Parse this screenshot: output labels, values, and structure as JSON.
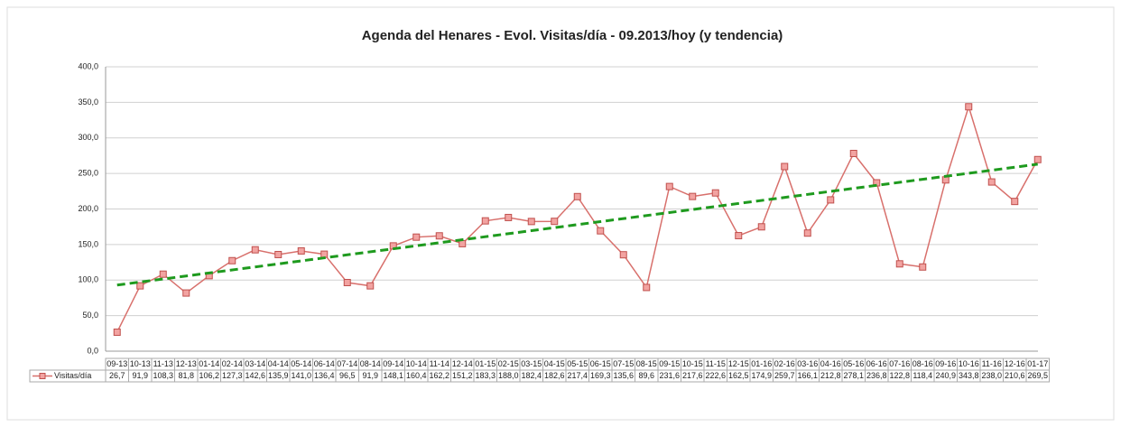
{
  "chart_data": {
    "type": "line",
    "title": "Agenda del Henares - Evol. Visitas/día - 09.2013/hoy (y tendencia)",
    "categories": [
      "09-13",
      "10-13",
      "11-13",
      "12-13",
      "01-14",
      "02-14",
      "03-14",
      "04-14",
      "05-14",
      "06-14",
      "07-14",
      "08-14",
      "09-14",
      "10-14",
      "11-14",
      "12-14",
      "01-15",
      "02-15",
      "03-15",
      "04-15",
      "05-15",
      "06-15",
      "07-15",
      "08-15",
      "09-15",
      "10-15",
      "11-15",
      "12-15",
      "01-16",
      "02-16",
      "03-16",
      "04-16",
      "05-16",
      "06-16",
      "07-16",
      "08-16",
      "09-16",
      "10-16",
      "11-16",
      "12-16",
      "01-17"
    ],
    "series": [
      {
        "name": "Visitas/día",
        "color": "#c0504d",
        "values": [
          26.7,
          91.9,
          108.3,
          81.8,
          106.2,
          127.3,
          142.6,
          135.9,
          141.0,
          136.4,
          96.5,
          91.9,
          148.1,
          160.4,
          162.2,
          151.2,
          183.3,
          188.0,
          182.4,
          182.6,
          217.4,
          169.3,
          135.6,
          89.6,
          231.6,
          217.6,
          222.6,
          162.5,
          174.9,
          259.7,
          166.1,
          212.8,
          278.1,
          236.8,
          122.8,
          118.4,
          240.9,
          343.8,
          238.0,
          210.6,
          269.5
        ],
        "value_labels": [
          "26,7",
          "91,9",
          "108,3",
          "81,8",
          "106,2",
          "127,3",
          "142,6",
          "135,9",
          "141,0",
          "136,4",
          "96,5",
          "91,9",
          "148,1",
          "160,4",
          "162,2",
          "151,2",
          "183,3",
          "188,0",
          "182,4",
          "182,6",
          "217,4",
          "169,3",
          "135,6",
          "89,6",
          "231,6",
          "217,6",
          "222,6",
          "162,5",
          "174,9",
          "259,7",
          "166,1",
          "212,8",
          "278,1",
          "236,8",
          "122,8",
          "118,4",
          "240,9",
          "343,8",
          "238,0",
          "210,6",
          "269,5"
        ]
      }
    ],
    "trendline": {
      "color": "#1e9a1e",
      "values": [
        93,
        263
      ]
    },
    "ylim": [
      0,
      400
    ],
    "yticks": [
      {
        "value": 0,
        "label": "0,0"
      },
      {
        "value": 50,
        "label": "50,0"
      },
      {
        "value": 100,
        "label": "100,0"
      },
      {
        "value": 150,
        "label": "150,0"
      },
      {
        "value": 200,
        "label": "200,0"
      },
      {
        "value": 250,
        "label": "250,0"
      },
      {
        "value": 300,
        "label": "300,0"
      },
      {
        "value": 350,
        "label": "350,0"
      },
      {
        "value": 400,
        "label": "400,0"
      }
    ],
    "grid": true
  }
}
